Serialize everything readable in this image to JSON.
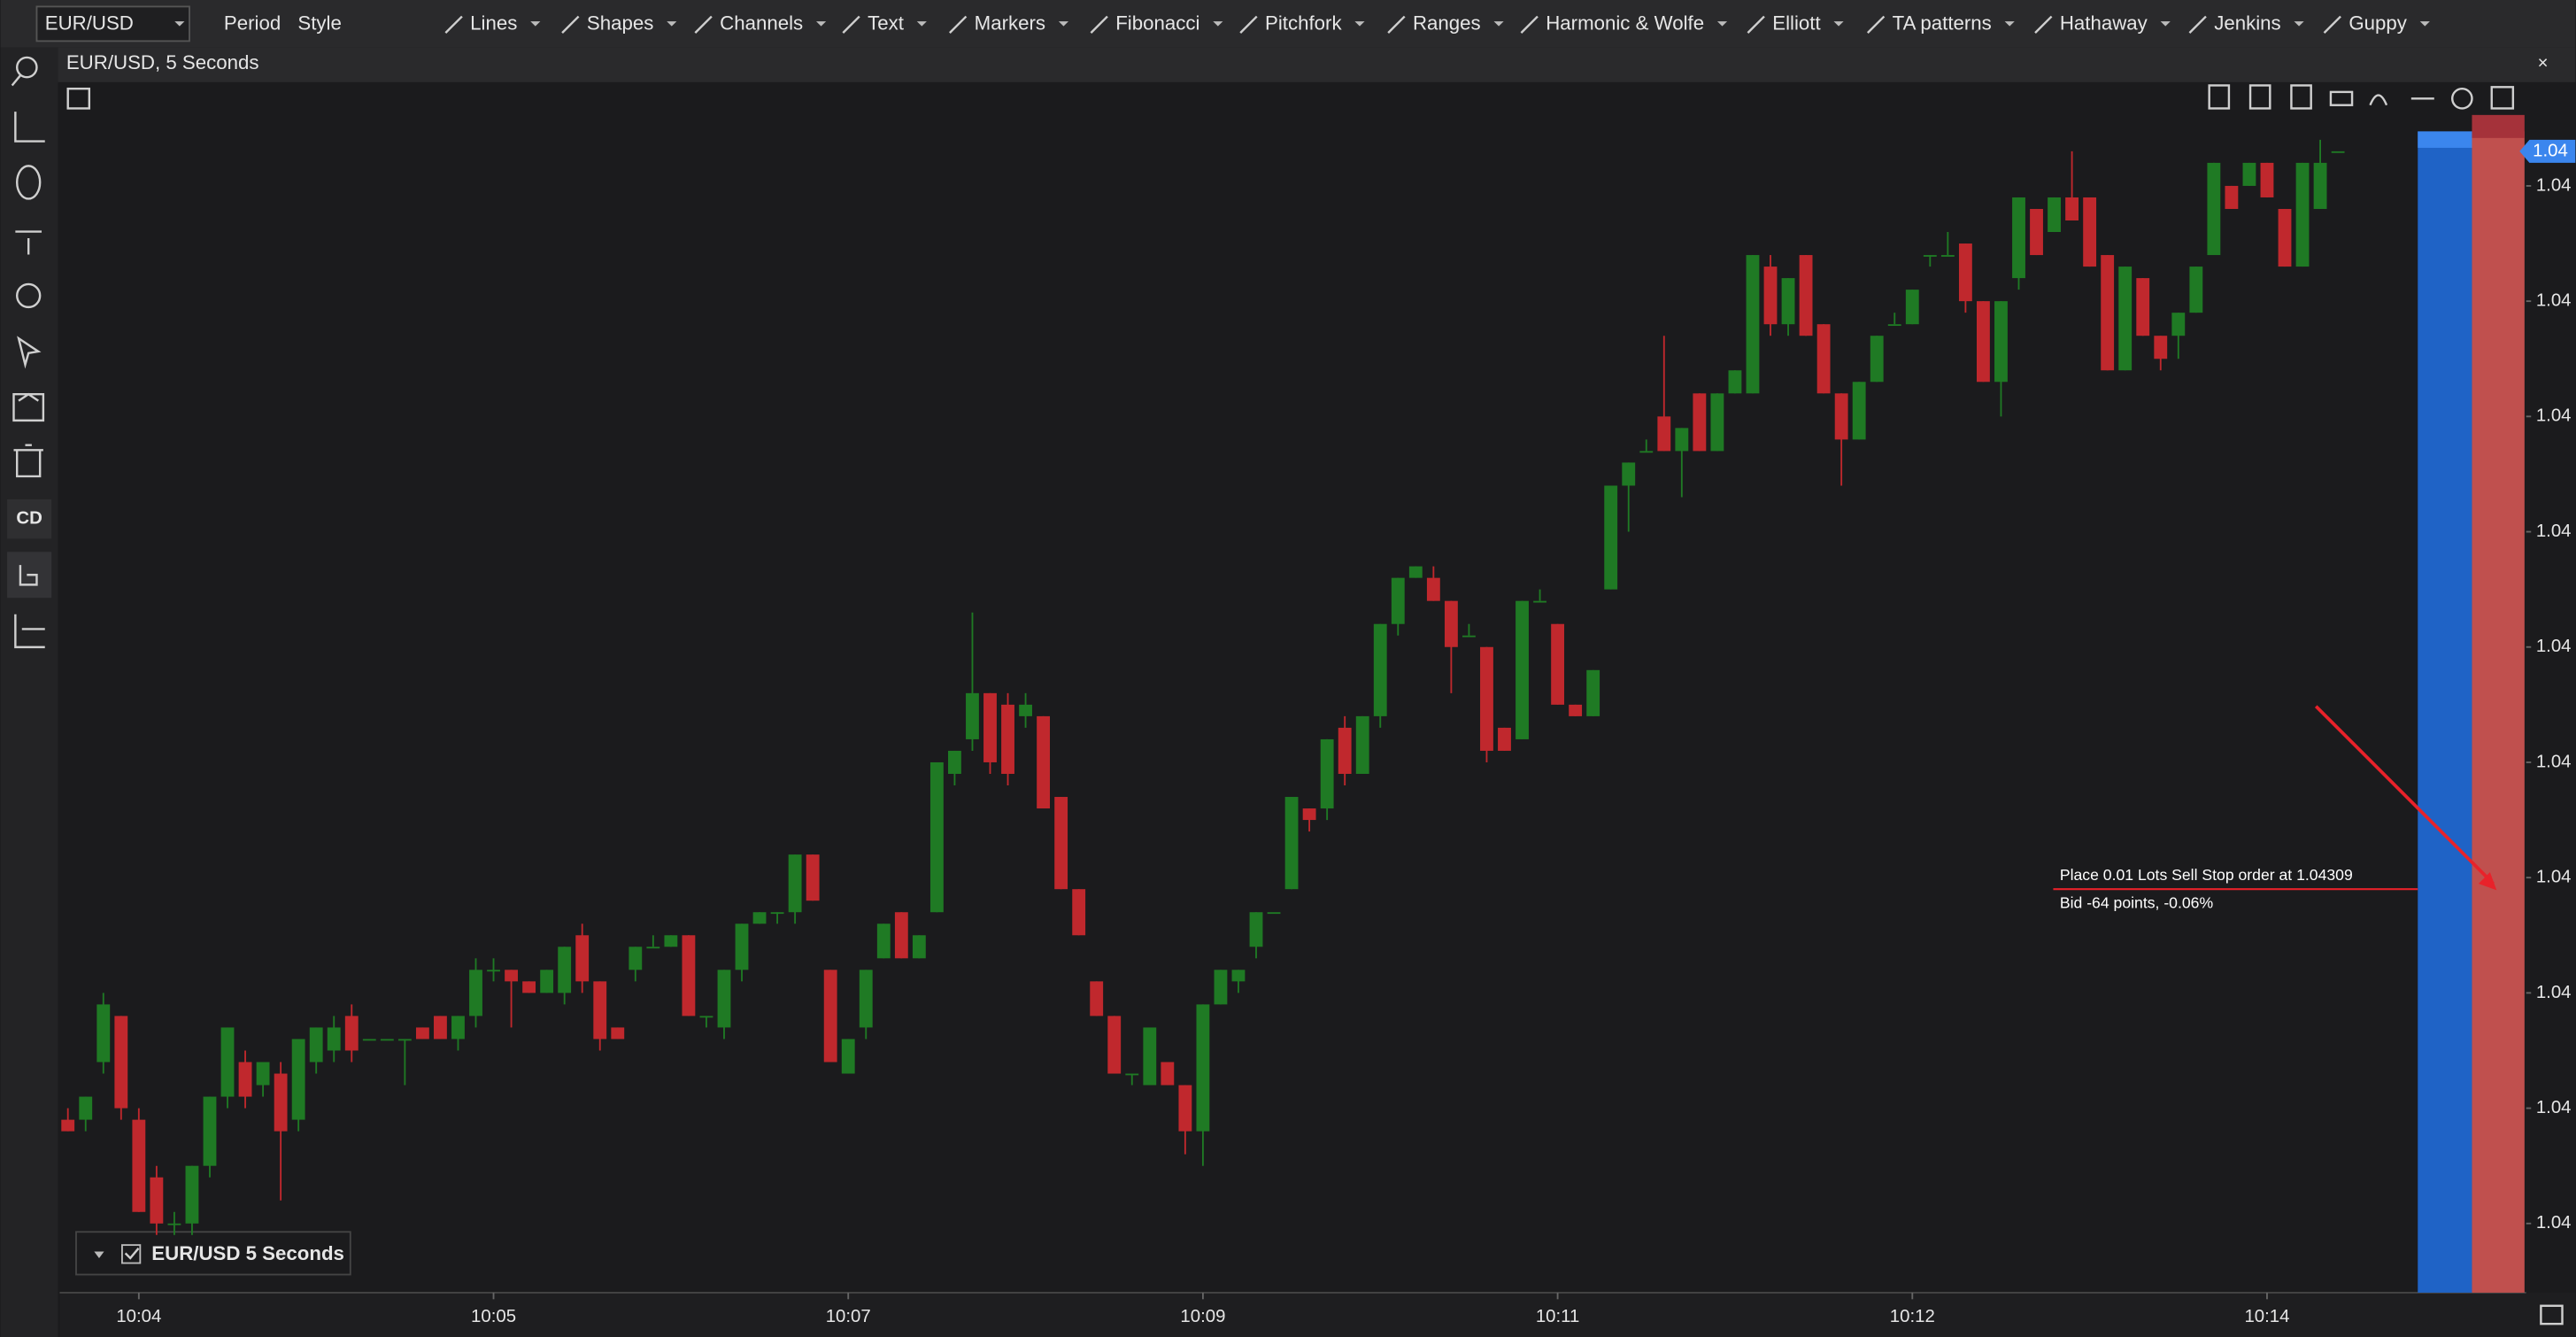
{
  "toolbar": {
    "symbol": "EUR/USD",
    "items": [
      "Period",
      "Style"
    ],
    "tools": [
      "Lines",
      "Shapes",
      "Channels",
      "Text",
      "Markers",
      "Fibonacci",
      "Pitchfork",
      "Ranges",
      "Harmonic & Wolfe",
      "Elliott",
      "TA patterns",
      "Hathaway",
      "Jenkins",
      "Guppy"
    ]
  },
  "sidebar": {
    "label": "CD"
  },
  "chart_data": {
    "type": "candlestick",
    "title": "EUR/USD, 5 Seconds",
    "legend": "EUR/USD 5 Seconds",
    "up_color": "#1f7a24",
    "down_color": "#c0282d",
    "open": [
      1.04289,
      1.04289,
      1.04294,
      1.04298,
      1.04289,
      1.04284,
      1.0428,
      1.0428,
      1.04285,
      1.04291,
      1.04294,
      1.04292,
      1.04293,
      1.04289,
      1.04294,
      1.04295,
      1.04298,
      1.04296,
      1.04296,
      1.04296,
      1.04297,
      1.04298,
      1.04296,
      1.04298,
      1.04302,
      1.04302,
      1.04301,
      1.043,
      1.043,
      1.04305,
      1.04301,
      1.04297,
      1.04302,
      1.04304,
      1.04304,
      1.04305,
      1.04298,
      1.04297,
      1.04302,
      1.04306,
      1.04307,
      1.04307,
      1.04312,
      1.04302,
      1.04293,
      1.04297,
      1.04303,
      1.04307,
      1.04303,
      1.04307,
      1.04319,
      1.04322,
      1.04326,
      1.04325,
      1.04324,
      1.04324,
      1.04317,
      1.04309,
      1.04301,
      1.04298,
      1.04293,
      1.04292,
      1.04294,
      1.04292,
      1.04288,
      1.04299,
      1.04301,
      1.04304,
      1.04307,
      1.04309,
      1.04316,
      1.04316,
      1.04323,
      1.04319,
      1.04324,
      1.04332,
      1.04336,
      1.04336,
      1.04334,
      1.04331,
      1.0433,
      1.04323,
      1.04322,
      1.04334,
      1.04332,
      1.04325,
      1.04324,
      1.04335,
      1.04344,
      1.04347,
      1.0435,
      1.04347,
      1.04352,
      1.04347,
      1.04352,
      1.04352,
      1.04363,
      1.04358,
      1.04364,
      1.04358,
      1.04352,
      1.04348,
      1.04353,
      1.04358,
      1.04358,
      1.04364,
      1.04364,
      1.04365,
      1.0436,
      1.04353,
      1.04362,
      1.04368,
      1.04366,
      1.04369,
      1.04369,
      1.04364,
      1.04354,
      1.04362,
      1.04357,
      1.04357,
      1.04359,
      1.04364,
      1.0437,
      1.0437,
      1.04372,
      1.04368,
      1.04363,
      1.04368,
      1.04373
    ],
    "high": [
      1.0429,
      1.04291,
      1.043,
      1.04298,
      1.0429,
      1.04285,
      1.04281,
      1.04285,
      1.04291,
      1.04297,
      1.04295,
      1.04294,
      1.04294,
      1.04296,
      1.04297,
      1.04298,
      1.04299,
      1.04296,
      1.04296,
      1.04296,
      1.04297,
      1.04298,
      1.04298,
      1.04303,
      1.04303,
      1.04302,
      1.04301,
      1.04302,
      1.04304,
      1.04306,
      1.04301,
      1.04297,
      1.04304,
      1.04305,
      1.04305,
      1.04305,
      1.04298,
      1.04302,
      1.04306,
      1.04307,
      1.04307,
      1.04312,
      1.04312,
      1.04302,
      1.04296,
      1.04302,
      1.04306,
      1.04307,
      1.04305,
      1.0432,
      1.04321,
      1.04333,
      1.04326,
      1.04326,
      1.04326,
      1.04324,
      1.04317,
      1.04309,
      1.04301,
      1.04298,
      1.04293,
      1.04297,
      1.04294,
      1.04292,
      1.04299,
      1.04302,
      1.04302,
      1.04307,
      1.04307,
      1.04317,
      1.04316,
      1.04322,
      1.04324,
      1.04324,
      1.04332,
      1.04336,
      1.04337,
      1.04337,
      1.04334,
      1.04332,
      1.0433,
      1.04323,
      1.04334,
      1.04335,
      1.04332,
      1.04325,
      1.04328,
      1.04344,
      1.04346,
      1.04348,
      1.04357,
      1.04349,
      1.04352,
      1.04352,
      1.04354,
      1.04364,
      1.04364,
      1.04362,
      1.04364,
      1.04358,
      1.04352,
      1.04353,
      1.04357,
      1.04359,
      1.04361,
      1.04364,
      1.04366,
      1.04365,
      1.0436,
      1.0436,
      1.04369,
      1.04368,
      1.04369,
      1.04373,
      1.04369,
      1.04364,
      1.04363,
      1.04362,
      1.04357,
      1.04359,
      1.04363,
      1.04372,
      1.0437,
      1.04372,
      1.04372,
      1.04368,
      1.04372,
      1.04374,
      1.04373
    ],
    "low": [
      1.04288,
      1.04288,
      1.04293,
      1.04289,
      1.04281,
      1.04279,
      1.04279,
      1.04279,
      1.04284,
      1.0429,
      1.0429,
      1.04291,
      1.04282,
      1.04288,
      1.04293,
      1.04294,
      1.04294,
      1.04296,
      1.04296,
      1.04292,
      1.04296,
      1.04296,
      1.04295,
      1.04297,
      1.04301,
      1.04297,
      1.043,
      1.043,
      1.04299,
      1.043,
      1.04295,
      1.04296,
      1.04301,
      1.04304,
      1.04304,
      1.04298,
      1.04297,
      1.04296,
      1.04301,
      1.04306,
      1.04306,
      1.04306,
      1.04308,
      1.04294,
      1.04293,
      1.04296,
      1.04303,
      1.04303,
      1.04303,
      1.04307,
      1.04318,
      1.04321,
      1.04319,
      1.04318,
      1.04323,
      1.04316,
      1.04309,
      1.04305,
      1.04298,
      1.04293,
      1.04292,
      1.04292,
      1.04292,
      1.04286,
      1.04285,
      1.04299,
      1.043,
      1.04303,
      1.04307,
      1.04309,
      1.04314,
      1.04315,
      1.04318,
      1.04319,
      1.04323,
      1.04331,
      1.04336,
      1.04334,
      1.04326,
      1.04331,
      1.0432,
      1.04321,
      1.04322,
      1.04334,
      1.04325,
      1.04324,
      1.04324,
      1.04335,
      1.0434,
      1.04347,
      1.04347,
      1.04343,
      1.04347,
      1.04347,
      1.04352,
      1.04352,
      1.04357,
      1.04357,
      1.04357,
      1.04352,
      1.04344,
      1.04348,
      1.04353,
      1.04358,
      1.04358,
      1.04363,
      1.04364,
      1.04359,
      1.04353,
      1.0435,
      1.04361,
      1.04364,
      1.04366,
      1.04367,
      1.04363,
      1.04354,
      1.04354,
      1.04357,
      1.04354,
      1.04355,
      1.04359,
      1.04364,
      1.04368,
      1.0437,
      1.04369,
      1.04363,
      1.04363,
      1.04368,
      1.04373
    ],
    "close": [
      1.04288,
      1.04291,
      1.04299,
      1.0429,
      1.04281,
      1.0428,
      1.0428,
      1.04285,
      1.04291,
      1.04297,
      1.04291,
      1.04294,
      1.04288,
      1.04296,
      1.04297,
      1.04297,
      1.04295,
      1.04296,
      1.04296,
      1.04296,
      1.04296,
      1.04296,
      1.04298,
      1.04302,
      1.04302,
      1.04301,
      1.043,
      1.04302,
      1.04304,
      1.04301,
      1.04296,
      1.04296,
      1.04304,
      1.04304,
      1.04305,
      1.04298,
      1.04298,
      1.04302,
      1.04306,
      1.04307,
      1.04307,
      1.04312,
      1.04308,
      1.04294,
      1.04296,
      1.04302,
      1.04306,
      1.04303,
      1.04305,
      1.0432,
      1.04321,
      1.04326,
      1.0432,
      1.04319,
      1.04325,
      1.04316,
      1.04309,
      1.04305,
      1.04298,
      1.04293,
      1.04293,
      1.04297,
      1.04292,
      1.04288,
      1.04299,
      1.04302,
      1.04302,
      1.04307,
      1.04307,
      1.04317,
      1.04315,
      1.04322,
      1.04319,
      1.04324,
      1.04332,
      1.04336,
      1.04337,
      1.04334,
      1.0433,
      1.04331,
      1.04321,
      1.04321,
      1.04334,
      1.04334,
      1.04325,
      1.04324,
      1.04328,
      1.04344,
      1.04346,
      1.04347,
      1.04347,
      1.04349,
      1.04347,
      1.04352,
      1.04354,
      1.04364,
      1.04358,
      1.04362,
      1.04357,
      1.04352,
      1.04348,
      1.04353,
      1.04357,
      1.04358,
      1.04361,
      1.04364,
      1.04364,
      1.0436,
      1.04353,
      1.0436,
      1.04369,
      1.04364,
      1.04369,
      1.04367,
      1.04363,
      1.04354,
      1.04363,
      1.04357,
      1.04355,
      1.04359,
      1.04363,
      1.04372,
      1.04368,
      1.04372,
      1.04369,
      1.04363,
      1.04372,
      1.04372,
      1.04373
    ],
    "ylim": [
      1.04274,
      1.04379
    ],
    "yticks": [
      {
        "value": 1.0437,
        "label": "1.04"
      },
      {
        "value": 1.0436,
        "label": "1.04"
      },
      {
        "value": 1.0435,
        "label": "1.04"
      },
      {
        "value": 1.0434,
        "label": "1.04"
      },
      {
        "value": 1.0433,
        "label": "1.04"
      },
      {
        "value": 1.0432,
        "label": "1.04"
      },
      {
        "value": 1.0431,
        "label": "1.04"
      },
      {
        "value": 1.043,
        "label": "1.04"
      },
      {
        "value": 1.0429,
        "label": "1.04"
      },
      {
        "value": 1.0428,
        "label": "1.04"
      }
    ],
    "xticks": [
      "10:04",
      "10:05",
      "10:07",
      "10:09",
      "10:11",
      "10:12",
      "10:14"
    ],
    "bid": {
      "value": 1.04373,
      "label": "1.04"
    },
    "order": {
      "text": "Place 0.01 Lots Sell Stop order at 1.04309",
      "price": 1.04309,
      "detail": "Bid -64 points, -0.06%"
    }
  }
}
